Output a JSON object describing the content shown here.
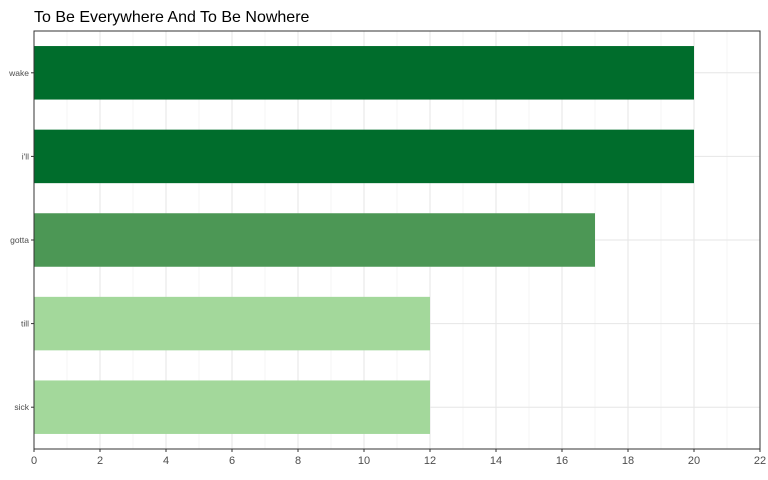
{
  "chart_data": {
    "type": "bar",
    "orientation": "horizontal",
    "title": "To Be Everywhere And To Be Nowhere",
    "xlabel": "",
    "ylabel": "",
    "categories": [
      "wake",
      "i'll",
      "gotta",
      "till",
      "sick"
    ],
    "values": [
      20,
      20,
      17,
      12,
      12
    ],
    "bar_colors": [
      "#006d2c",
      "#006d2c",
      "#4c9755",
      "#a3d89b",
      "#a3d89b"
    ],
    "xlim": [
      0,
      22
    ],
    "xticks": [
      0,
      2,
      4,
      6,
      8,
      10,
      12,
      14,
      16,
      18,
      20,
      22
    ],
    "grid": true,
    "legend": "none"
  }
}
